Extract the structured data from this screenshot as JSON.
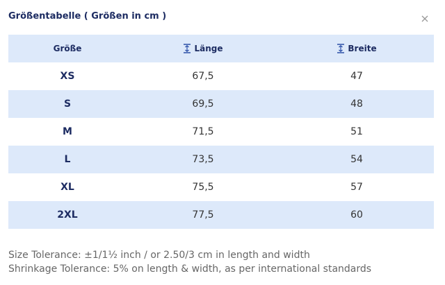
{
  "header": {
    "title": "Größentabelle ( Größen in cm )"
  },
  "table": {
    "columns": [
      "Größe",
      "Länge",
      "Breite"
    ],
    "rows": [
      [
        "XS",
        "67,5",
        "47"
      ],
      [
        "S",
        "69,5",
        "48"
      ],
      [
        "M",
        "71,5",
        "51"
      ],
      [
        "L",
        "73,5",
        "54"
      ],
      [
        "XL",
        "75,5",
        "57"
      ],
      [
        "2XL",
        "77,5",
        "60"
      ]
    ]
  },
  "footer": {
    "notes": [
      "Size Tolerance: ±1/1½ inch / or 2.50/3 cm in length and width",
      "Shrinkage Tolerance: 5% on length & width, as per international standards"
    ]
  }
}
